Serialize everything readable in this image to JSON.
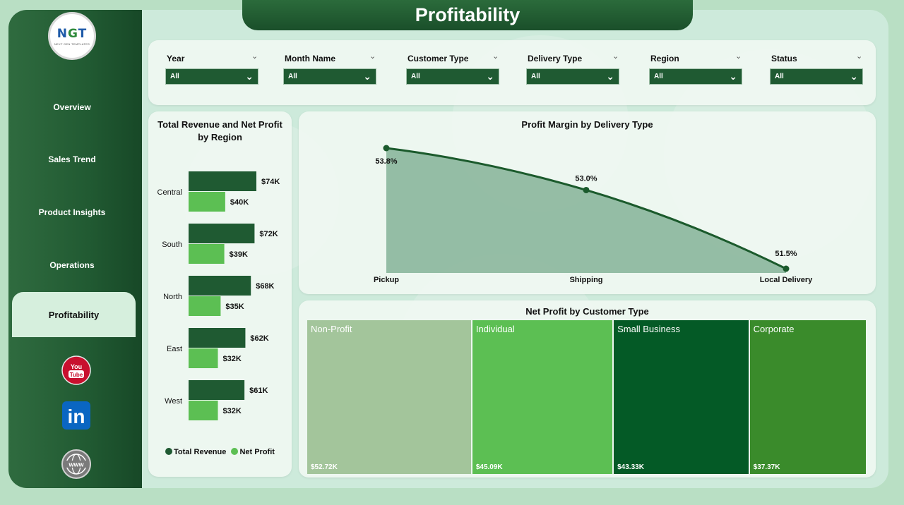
{
  "title": "Profitability",
  "logo": {
    "text": "NGT",
    "subtext": "NEXT GEN TEMPLATES"
  },
  "nav": [
    {
      "label": "Overview",
      "active": false
    },
    {
      "label": "Sales Trend",
      "active": false
    },
    {
      "label": "Product Insights",
      "active": false
    },
    {
      "label": "Operations",
      "active": false
    },
    {
      "label": "Profitability",
      "active": true
    }
  ],
  "social": [
    {
      "name": "youtube-icon",
      "text": "You Tube"
    },
    {
      "name": "linkedin-icon",
      "text": "in"
    },
    {
      "name": "website-icon",
      "text": "www"
    }
  ],
  "filters": [
    {
      "label": "Year",
      "value": "All"
    },
    {
      "label": "Month Name",
      "value": "All"
    },
    {
      "label": "Customer Type",
      "value": "All"
    },
    {
      "label": "Delivery Type",
      "value": "All"
    },
    {
      "label": "Region",
      "value": "All"
    },
    {
      "label": "Status",
      "value": "All"
    }
  ],
  "colors": {
    "dark_green": "#1f5a32",
    "light_green": "#5cbf53",
    "area_fill": "#8fb9a0",
    "line": "#1b5a2c"
  },
  "region_chart": {
    "title": "Total Revenue and Net Profit by Region",
    "legend": [
      "Total Revenue",
      "Net Profit"
    ],
    "chart_data": {
      "type": "bar",
      "orientation": "horizontal",
      "categories": [
        "Central",
        "South",
        "North",
        "East",
        "West"
      ],
      "series": [
        {
          "name": "Total Revenue",
          "values": [
            74,
            72,
            68,
            62,
            61
          ],
          "labels": [
            "$74K",
            "$72K",
            "$68K",
            "$62K",
            "$61K"
          ]
        },
        {
          "name": "Net Profit",
          "values": [
            40,
            39,
            35,
            32,
            32
          ],
          "labels": [
            "$40K",
            "$39K",
            "$35K",
            "$32K",
            "$32K"
          ]
        }
      ],
      "unit": "$K",
      "xlim": [
        0,
        80
      ]
    }
  },
  "margin_chart": {
    "title": "Profit Margin by Delivery Type",
    "chart_data": {
      "type": "area",
      "categories": [
        "Pickup",
        "Shipping",
        "Local Delivery"
      ],
      "values": [
        53.8,
        53.0,
        51.5
      ],
      "labels": [
        "53.8%",
        "53.0%",
        "51.5%"
      ],
      "ylim": [
        51.5,
        53.8
      ]
    }
  },
  "treemap": {
    "title": "Net Profit by Customer Type",
    "chart_data": {
      "type": "treemap",
      "categories": [
        "Non-Profit",
        "Individual",
        "Small Business",
        "Corporate"
      ],
      "values": [
        52.72,
        45.09,
        43.33,
        37.37
      ],
      "labels": [
        "$52.72K",
        "$45.09K",
        "$43.33K",
        "$37.37K"
      ],
      "colors": [
        "#a3c59b",
        "#5cbf53",
        "#045a26",
        "#3a8b2b"
      ]
    }
  }
}
